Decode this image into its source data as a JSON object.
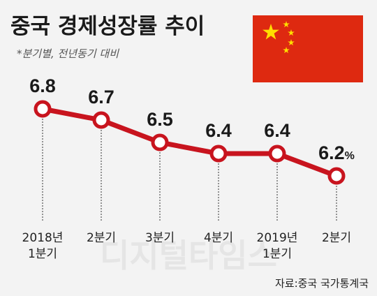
{
  "title": "중국 경제성장률 추이",
  "subtitle": "*분기별, 전년동기 대비",
  "source": "자료:중국 국가통계국",
  "watermark": "디지털타임스",
  "flag_alt": "China flag",
  "colors": {
    "line": "#c8141e",
    "marker_fill": "#ffffff",
    "flag_red": "#de2910",
    "flag_star": "#ffde00"
  },
  "chart_data": {
    "type": "line",
    "title": "중국 경제성장률 추이",
    "subtitle": "*분기별, 전년동기 대비",
    "categories": [
      [
        "2018년",
        "1분기"
      ],
      [
        "2분기"
      ],
      [
        "3분기"
      ],
      [
        "4분기"
      ],
      [
        "2019년",
        "1분기"
      ],
      [
        "2분기"
      ]
    ],
    "values": [
      6.8,
      6.7,
      6.5,
      6.4,
      6.4,
      6.2
    ],
    "value_labels": [
      "6.8",
      "6.7",
      "6.5",
      "6.4",
      "6.4",
      "6.2"
    ],
    "unit": "%",
    "unit_on_last_only": true,
    "ylim": [
      6.0,
      7.0
    ],
    "grid": false,
    "legend": "none"
  }
}
